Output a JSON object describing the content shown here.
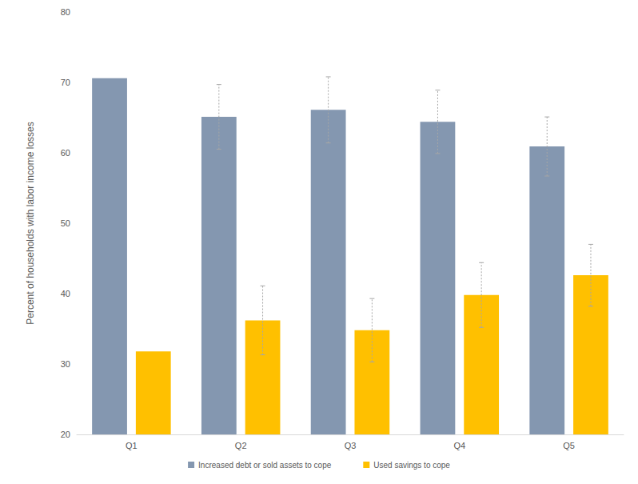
{
  "chart_data": {
    "type": "bar",
    "y_label": "Percent of households with labor income losses",
    "categories": [
      "Q1",
      "Q2",
      "Q3",
      "Q4",
      "Q5"
    ],
    "series": [
      {
        "name": "Increased debt or sold assets to cope",
        "color": "#8497b0",
        "values": [
          70.6,
          65.1,
          66.1,
          64.4,
          60.9
        ],
        "error_low": [
          null,
          60.5,
          61.4,
          59.9,
          56.7
        ],
        "error_high": [
          null,
          69.7,
          70.8,
          68.9,
          65.1
        ]
      },
      {
        "name": "Used savings to cope",
        "color": "#ffc000",
        "values": [
          31.8,
          36.2,
          34.8,
          39.8,
          42.6
        ],
        "error_low": [
          null,
          31.3,
          30.3,
          35.2,
          38.2
        ],
        "error_high": [
          null,
          41.1,
          39.3,
          44.4,
          47.0
        ]
      }
    ],
    "ylim": [
      20,
      80
    ],
    "yticks": [
      20,
      30,
      40,
      50,
      60,
      70,
      80
    ],
    "grid": false,
    "legend": "bottom"
  }
}
